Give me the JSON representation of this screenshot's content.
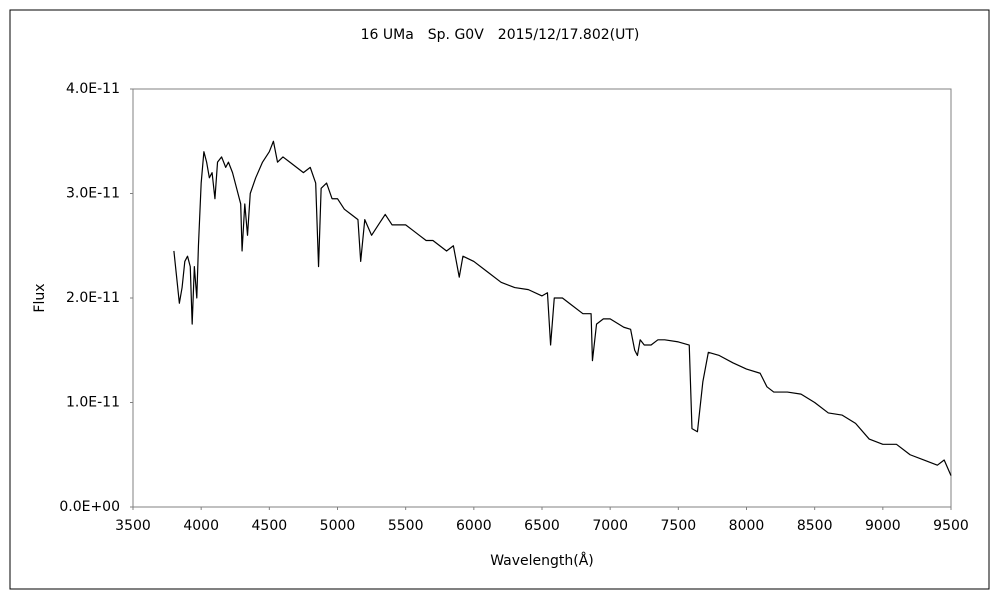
{
  "chart_data": {
    "type": "line",
    "title": "16 UMa　Sp. G0V　2015/12/17.802(UT)",
    "xlabel": "Wavelength(Å)",
    "ylabel": "Flux",
    "xlim": [
      3500,
      9500
    ],
    "xticks": [
      3500,
      4000,
      4500,
      5000,
      5500,
      6000,
      6500,
      7000,
      7500,
      8000,
      8500,
      9000,
      9500
    ],
    "ylim": [
      0,
      4e-11
    ],
    "yticks": [
      {
        "value": 0,
        "label": "0.0E+00"
      },
      {
        "value": 1e-11,
        "label": "1.0E-11"
      },
      {
        "value": 2e-11,
        "label": "2.0E-11"
      },
      {
        "value": 3e-11,
        "label": "3.0E-11"
      },
      {
        "value": 4e-11,
        "label": "4.0E-11"
      }
    ],
    "grid": false,
    "color": "#000000",
    "x": [
      3800,
      3820,
      3840,
      3860,
      3880,
      3900,
      3920,
      3934,
      3950,
      3968,
      3980,
      4000,
      4020,
      4040,
      4060,
      4080,
      4101,
      4120,
      4150,
      4180,
      4200,
      4230,
      4260,
      4290,
      4300,
      4320,
      4340,
      4360,
      4400,
      4450,
      4500,
      4530,
      4560,
      4600,
      4650,
      4700,
      4750,
      4800,
      4840,
      4861,
      4880,
      4920,
      4960,
      5000,
      5050,
      5100,
      5150,
      5170,
      5200,
      5250,
      5300,
      5350,
      5400,
      5450,
      5500,
      5550,
      5600,
      5650,
      5700,
      5750,
      5800,
      5850,
      5893,
      5920,
      6000,
      6100,
      6200,
      6300,
      6400,
      6500,
      6540,
      6563,
      6590,
      6650,
      6700,
      6800,
      6860,
      6870,
      6900,
      6950,
      7000,
      7100,
      7150,
      7180,
      7200,
      7220,
      7250,
      7300,
      7350,
      7400,
      7500,
      7580,
      7600,
      7640,
      7680,
      7720,
      7800,
      7900,
      8000,
      8100,
      8150,
      8200,
      8300,
      8400,
      8500,
      8600,
      8700,
      8800,
      8900,
      9000,
      9100,
      9200,
      9300,
      9400,
      9450,
      9500
    ],
    "values": [
      2.45e-11,
      2.2e-11,
      1.95e-11,
      2.1e-11,
      2.35e-11,
      2.4e-11,
      2.3e-11,
      1.75e-11,
      2.3e-11,
      2e-11,
      2.5e-11,
      3.1e-11,
      3.4e-11,
      3.3e-11,
      3.15e-11,
      3.2e-11,
      2.95e-11,
      3.3e-11,
      3.35e-11,
      3.25e-11,
      3.3e-11,
      3.2e-11,
      3.05e-11,
      2.9e-11,
      2.45e-11,
      2.9e-11,
      2.6e-11,
      3e-11,
      3.15e-11,
      3.3e-11,
      3.4e-11,
      3.5e-11,
      3.3e-11,
      3.35e-11,
      3.3e-11,
      3.25e-11,
      3.2e-11,
      3.25e-11,
      3.1e-11,
      2.3e-11,
      3.05e-11,
      3.1e-11,
      2.95e-11,
      2.95e-11,
      2.85e-11,
      2.8e-11,
      2.75e-11,
      2.35e-11,
      2.75e-11,
      2.6e-11,
      2.7e-11,
      2.8e-11,
      2.7e-11,
      2.7e-11,
      2.7e-11,
      2.65e-11,
      2.6e-11,
      2.55e-11,
      2.55e-11,
      2.5e-11,
      2.45e-11,
      2.5e-11,
      2.2e-11,
      2.4e-11,
      2.35e-11,
      2.25e-11,
      2.15e-11,
      2.1e-11,
      2.08e-11,
      2.02e-11,
      2.05e-11,
      1.55e-11,
      2e-11,
      2e-11,
      1.95e-11,
      1.85e-11,
      1.85e-11,
      1.4e-11,
      1.75e-11,
      1.8e-11,
      1.8e-11,
      1.72e-11,
      1.7e-11,
      1.5e-11,
      1.45e-11,
      1.6e-11,
      1.55e-11,
      1.55e-11,
      1.6e-11,
      1.6e-11,
      1.58e-11,
      1.55e-11,
      7.5e-12,
      7.2e-12,
      1.2e-11,
      1.48e-11,
      1.45e-11,
      1.38e-11,
      1.32e-11,
      1.28e-11,
      1.15e-11,
      1.1e-11,
      1.1e-11,
      1.08e-11,
      1e-11,
      9e-12,
      8.8e-12,
      8e-12,
      6.5e-12,
      6e-12,
      6e-12,
      5e-12,
      4.5e-12,
      4e-12,
      4.5e-12,
      3e-12
    ]
  }
}
